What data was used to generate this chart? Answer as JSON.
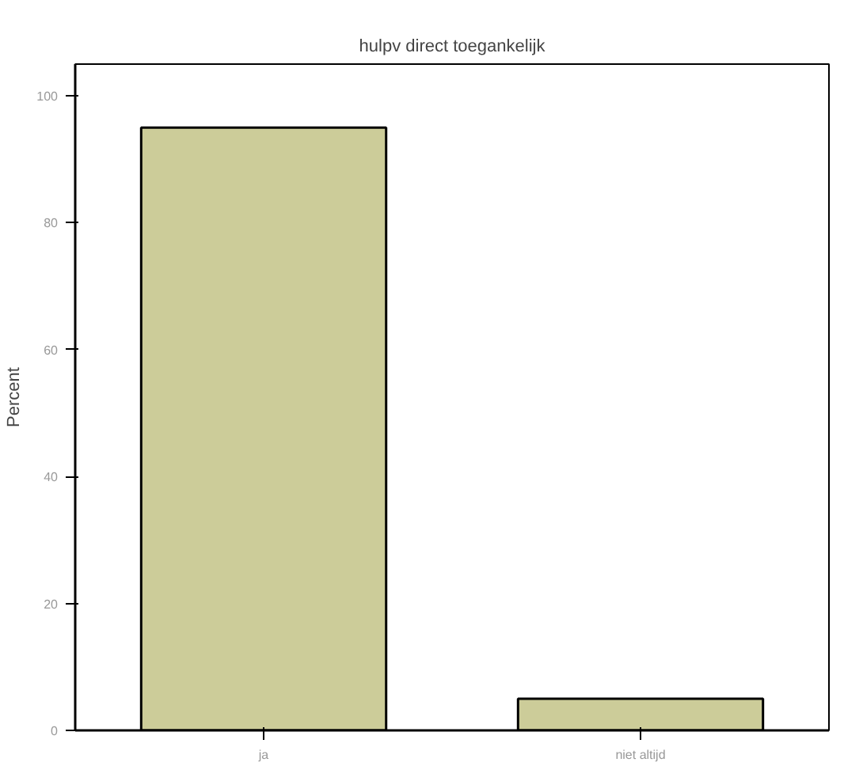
{
  "chart_data": {
    "type": "bar",
    "title": "hulpv direct toegankelijk",
    "ylabel": "Percent",
    "categories": [
      "ja",
      "niet altijd"
    ],
    "values": [
      95,
      5
    ],
    "color": "#cccc99",
    "ylim": [
      0,
      105
    ],
    "yticks": [
      0,
      20,
      40,
      60,
      80,
      100
    ],
    "grid": false
  }
}
